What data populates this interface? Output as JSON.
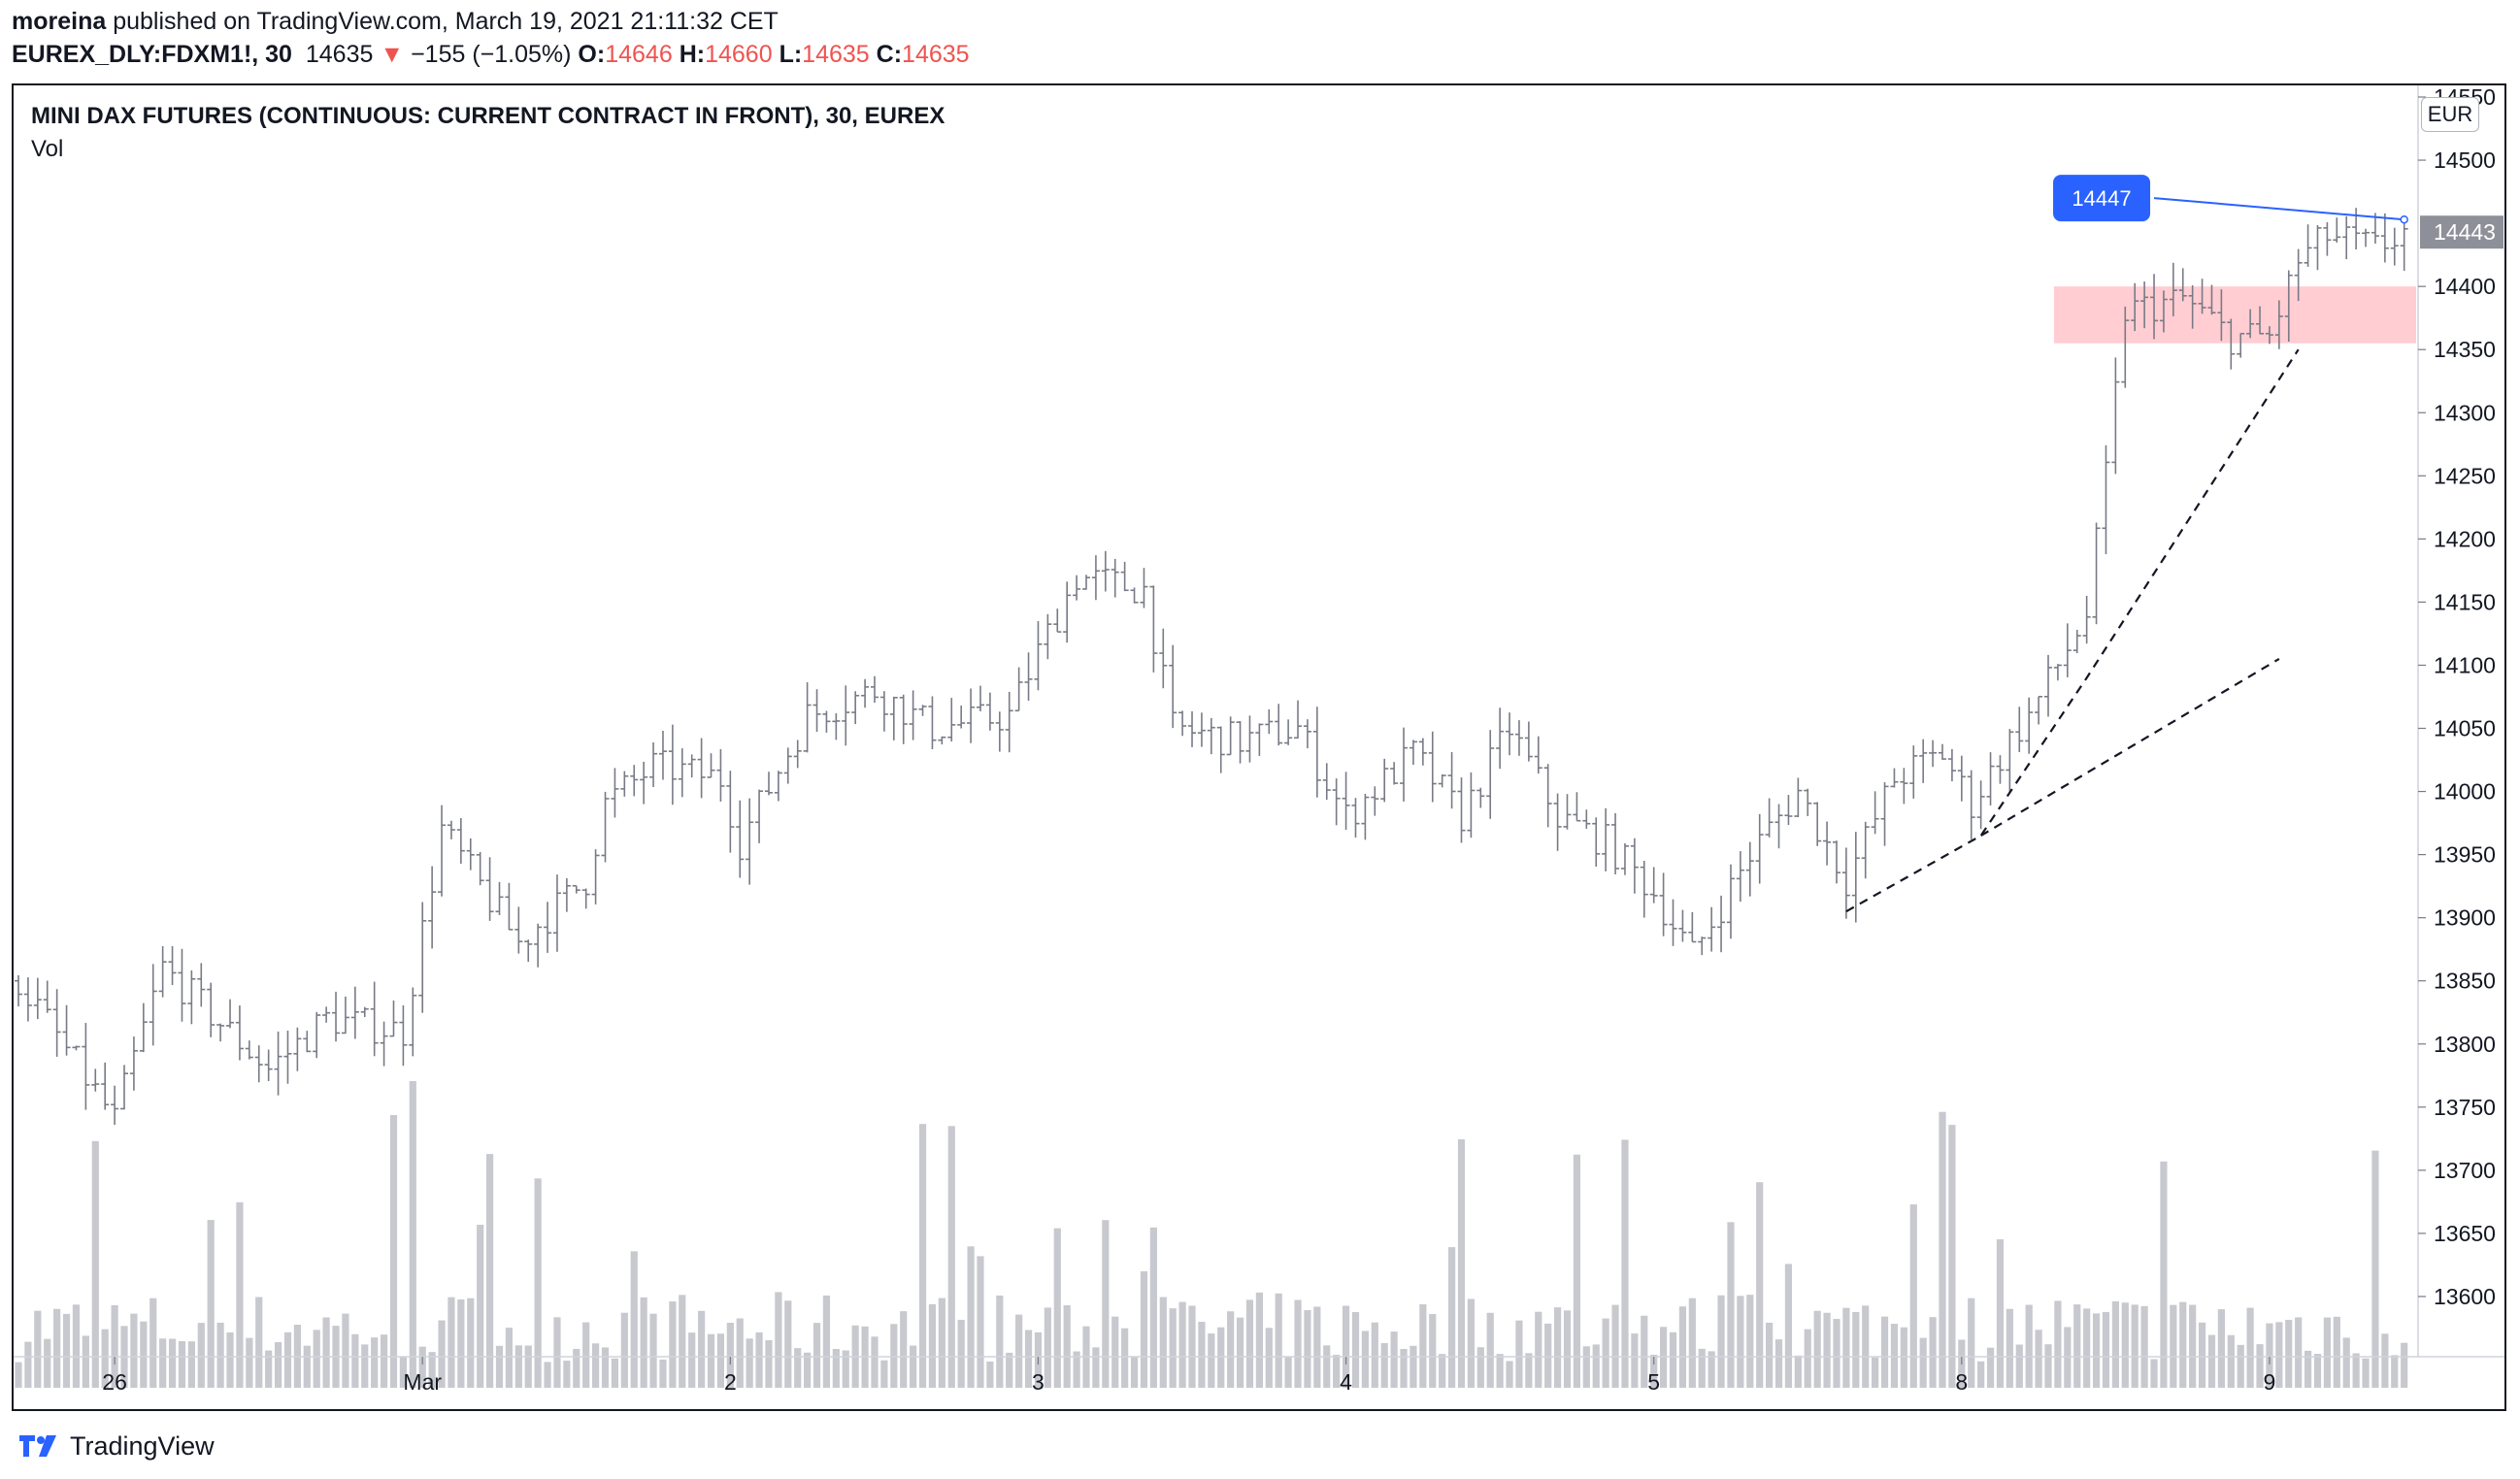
{
  "header": {
    "author": "moreina",
    "published": "published on TradingView.com, March 19, 2021 21:11:32 CET",
    "symbol": "EUREX_DLY:FDXM1!, 30",
    "last": "14635",
    "change": "−155 (−1.05%)",
    "o_label": "O:",
    "o_val": "14646",
    "h_label": "H:",
    "h_val": "14660",
    "l_label": "L:",
    "l_val": "14635",
    "c_label": "C:",
    "c_val": "14635"
  },
  "chart_title": "MINI DAX FUTURES (CONTINUOUS: CURRENT CONTRACT IN FRONT), 30, EUREX",
  "volume_label": "Vol",
  "currency": "EUR",
  "brand": "TradingView",
  "colors": {
    "bars": "#787b86",
    "volume": "#c8c9cf",
    "zone": "#ffcdd2",
    "price_label": "#2962ff",
    "last_price_bg": "#8e9099",
    "red": "#ef5350"
  },
  "chart_data": {
    "type": "bar",
    "title": "MINI DAX FUTURES (CONTINUOUS: CURRENT CONTRACT IN FRONT), 30, EUREX",
    "ylim": [
      13560,
      14550
    ],
    "y_ticks": [
      14550,
      14500,
      14400,
      14350,
      14300,
      14250,
      14200,
      14150,
      14100,
      14050,
      14000,
      13950,
      13900,
      13850,
      13800,
      13750,
      13700,
      13650,
      13600
    ],
    "x_ticks": [
      {
        "label": "26",
        "bar": 10
      },
      {
        "label": "Mar",
        "bar": 42
      },
      {
        "label": "2",
        "bar": 74
      },
      {
        "label": "3",
        "bar": 106
      },
      {
        "label": "4",
        "bar": 138
      },
      {
        "label": "5",
        "bar": 170
      },
      {
        "label": "8",
        "bar": 202
      },
      {
        "label": "9",
        "bar": 234
      }
    ],
    "bar_count": 249,
    "ohlc_anchors": [
      [
        0,
        13850
      ],
      [
        10,
        13740
      ],
      [
        15,
        13860
      ],
      [
        26,
        13780
      ],
      [
        32,
        13820
      ],
      [
        40,
        13810
      ],
      [
        44,
        13970
      ],
      [
        52,
        13880
      ],
      [
        59,
        13930
      ],
      [
        61,
        13990
      ],
      [
        66,
        14020
      ],
      [
        73,
        14010
      ],
      [
        75,
        13960
      ],
      [
        82,
        14060
      ],
      [
        89,
        14080
      ],
      [
        95,
        14050
      ],
      [
        103,
        14060
      ],
      [
        106,
        14110
      ],
      [
        110,
        14170
      ],
      [
        117,
        14160
      ],
      [
        120,
        14050
      ],
      [
        127,
        14040
      ],
      [
        133,
        14050
      ],
      [
        138,
        13980
      ],
      [
        145,
        14030
      ],
      [
        150,
        13980
      ],
      [
        155,
        14050
      ],
      [
        160,
        13980
      ],
      [
        165,
        13960
      ],
      [
        170,
        13920
      ],
      [
        174,
        13870
      ],
      [
        180,
        13950
      ],
      [
        185,
        14000
      ],
      [
        190,
        13930
      ],
      [
        195,
        14010
      ],
      [
        200,
        14030
      ],
      [
        203,
        13990
      ],
      [
        207,
        14040
      ],
      [
        209,
        14060
      ],
      [
        212,
        14100
      ],
      [
        215,
        14140
      ],
      [
        217,
        14250
      ],
      [
        219,
        14380
      ],
      [
        225,
        14390
      ],
      [
        230,
        14360
      ],
      [
        234,
        14360
      ],
      [
        237,
        14420
      ],
      [
        240,
        14440
      ],
      [
        245,
        14430
      ],
      [
        248,
        14443
      ]
    ],
    "volume_scale_max": 250,
    "price_label": "14447",
    "last_price": "14443",
    "zone": {
      "from_bar": 212,
      "to_bar": 249,
      "y_low": 14355,
      "y_high": 14400
    },
    "trendlines": [
      {
        "style": "dashed",
        "points": [
          [
            190,
            13905
          ],
          [
            204,
            13965
          ],
          [
            215,
            14090
          ],
          [
            237,
            14350
          ]
        ]
      },
      {
        "style": "dashed",
        "points": [
          [
            204,
            13965
          ],
          [
            235,
            14105
          ]
        ]
      },
      {
        "style": "solid",
        "points": [
          [
            222,
            14470
          ],
          [
            248,
            14453
          ]
        ]
      }
    ]
  }
}
